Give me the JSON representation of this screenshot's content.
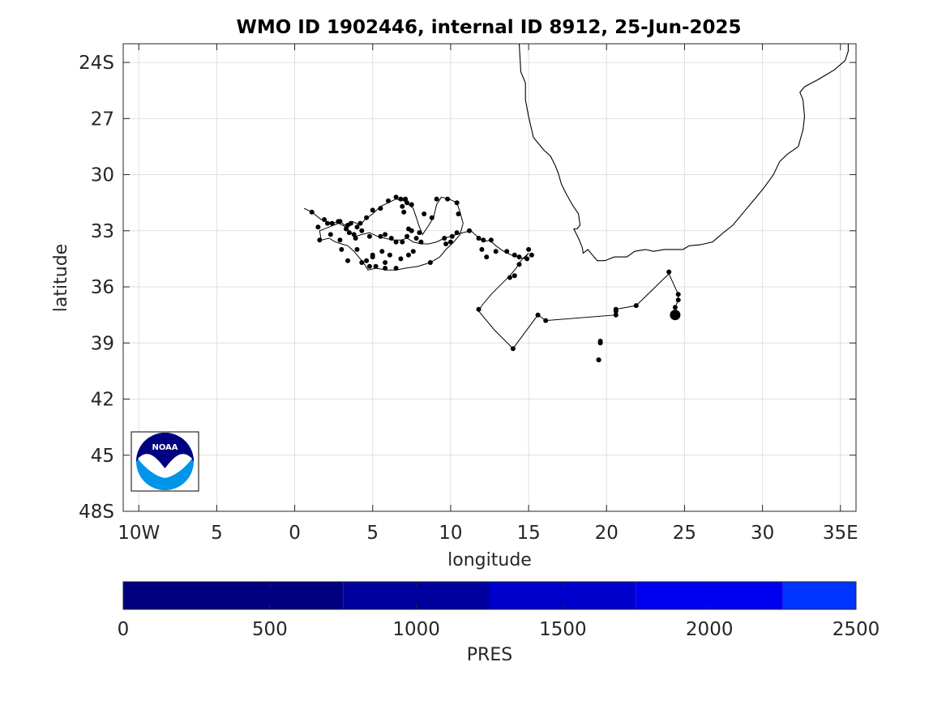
{
  "title": "WMO ID 1902446, internal ID 8912, 25-Jun-2025",
  "map": {
    "xlabel": "longitude",
    "ylabel": "latitude",
    "xlim": [
      -11,
      36
    ],
    "ylim": [
      -48,
      -23
    ],
    "xticks": [
      {
        "value": -10,
        "label": "10W"
      },
      {
        "value": -5,
        "label": "5"
      },
      {
        "value": 0,
        "label": "0"
      },
      {
        "value": 5,
        "label": "5"
      },
      {
        "value": 10,
        "label": "10"
      },
      {
        "value": 15,
        "label": "15"
      },
      {
        "value": 20,
        "label": "20"
      },
      {
        "value": 25,
        "label": "25"
      },
      {
        "value": 30,
        "label": "30"
      },
      {
        "value": 35,
        "label": "35E"
      }
    ],
    "yticks": [
      {
        "value": -24,
        "label": "24S"
      },
      {
        "value": -27,
        "label": "27"
      },
      {
        "value": -30,
        "label": "30"
      },
      {
        "value": -33,
        "label": "33"
      },
      {
        "value": -36,
        "label": "36"
      },
      {
        "value": -39,
        "label": "39"
      },
      {
        "value": -42,
        "label": "42"
      },
      {
        "value": -45,
        "label": "45"
      },
      {
        "value": -48,
        "label": "48S"
      }
    ],
    "grid": true,
    "coastline": [
      [
        14.4,
        -23.0
      ],
      [
        14.5,
        -24.5
      ],
      [
        14.8,
        -25.1
      ],
      [
        14.8,
        -26.0
      ],
      [
        15.0,
        -26.9
      ],
      [
        15.2,
        -27.6
      ],
      [
        15.3,
        -28.0
      ],
      [
        15.7,
        -28.4
      ],
      [
        16.0,
        -28.7
      ],
      [
        16.4,
        -29.0
      ],
      [
        16.7,
        -29.5
      ],
      [
        16.9,
        -29.9
      ],
      [
        17.1,
        -30.5
      ],
      [
        17.4,
        -31.0
      ],
      [
        17.8,
        -31.6
      ],
      [
        18.2,
        -32.1
      ],
      [
        18.3,
        -32.7
      ],
      [
        18.1,
        -32.9
      ],
      [
        17.9,
        -32.9
      ],
      [
        18.2,
        -33.4
      ],
      [
        18.45,
        -33.9
      ],
      [
        18.5,
        -34.2
      ],
      [
        18.8,
        -34.0
      ],
      [
        19.1,
        -34.3
      ],
      [
        19.4,
        -34.6
      ],
      [
        19.9,
        -34.6
      ],
      [
        20.5,
        -34.4
      ],
      [
        21.3,
        -34.4
      ],
      [
        21.8,
        -34.1
      ],
      [
        22.5,
        -34.0
      ],
      [
        23.0,
        -34.1
      ],
      [
        23.7,
        -34.0
      ],
      [
        24.5,
        -34.0
      ],
      [
        24.9,
        -34.0
      ],
      [
        25.3,
        -33.8
      ],
      [
        26.0,
        -33.75
      ],
      [
        26.8,
        -33.6
      ],
      [
        27.5,
        -33.1
      ],
      [
        28.1,
        -32.7
      ],
      [
        28.8,
        -32.0
      ],
      [
        29.5,
        -31.3
      ],
      [
        30.1,
        -30.7
      ],
      [
        30.7,
        -30.0
      ],
      [
        31.1,
        -29.3
      ],
      [
        31.6,
        -28.9
      ],
      [
        32.3,
        -28.5
      ],
      [
        32.6,
        -27.6
      ],
      [
        32.7,
        -26.9
      ],
      [
        32.6,
        -26.0
      ],
      [
        32.4,
        -25.6
      ],
      [
        32.7,
        -25.3
      ],
      [
        33.6,
        -24.9
      ],
      [
        34.6,
        -24.4
      ],
      [
        35.3,
        -23.9
      ],
      [
        35.5,
        -23.4
      ],
      [
        35.5,
        -23.0
      ]
    ],
    "track_path": [
      [
        0.6,
        -31.8
      ],
      [
        1.1,
        -32.0
      ],
      [
        1.7,
        -32.4
      ],
      [
        2.4,
        -32.6
      ],
      [
        2.9,
        -32.5
      ],
      [
        3.2,
        -32.7
      ],
      [
        3.7,
        -32.5
      ],
      [
        4.2,
        -32.7
      ],
      [
        4.5,
        -32.4
      ],
      [
        5.0,
        -32.1
      ],
      [
        5.5,
        -31.7
      ],
      [
        6.0,
        -31.5
      ],
      [
        6.5,
        -31.3
      ],
      [
        7.0,
        -31.4
      ],
      [
        7.3,
        -31.6
      ],
      [
        7.6,
        -31.8
      ],
      [
        7.8,
        -32.3
      ],
      [
        8.0,
        -32.8
      ],
      [
        8.2,
        -33.2
      ],
      [
        8.6,
        -32.7
      ],
      [
        8.9,
        -32.3
      ],
      [
        9.1,
        -31.6
      ],
      [
        9.4,
        -31.2
      ],
      [
        9.9,
        -31.3
      ],
      [
        10.4,
        -31.5
      ],
      [
        10.6,
        -32.0
      ],
      [
        10.8,
        -32.6
      ],
      [
        10.6,
        -33.2
      ],
      [
        10.2,
        -33.6
      ],
      [
        9.7,
        -34.0
      ],
      [
        9.3,
        -34.4
      ],
      [
        8.7,
        -34.7
      ],
      [
        7.9,
        -34.9
      ],
      [
        7.1,
        -35.0
      ],
      [
        6.5,
        -35.1
      ],
      [
        5.9,
        -35.1
      ],
      [
        5.2,
        -35.0
      ],
      [
        4.7,
        -35.1
      ],
      [
        4.4,
        -34.7
      ],
      [
        4.1,
        -34.4
      ],
      [
        3.8,
        -34.1
      ],
      [
        3.4,
        -33.8
      ],
      [
        3.0,
        -33.7
      ],
      [
        2.6,
        -33.6
      ],
      [
        2.2,
        -33.4
      ],
      [
        1.7,
        -33.5
      ],
      [
        1.6,
        -33.0
      ],
      [
        2.2,
        -32.8
      ],
      [
        2.8,
        -32.6
      ],
      [
        3.3,
        -32.8
      ],
      [
        3.6,
        -33.1
      ],
      [
        3.9,
        -33.3
      ],
      [
        4.3,
        -33.2
      ],
      [
        4.8,
        -33.1
      ],
      [
        5.3,
        -33.3
      ],
      [
        5.8,
        -33.4
      ],
      [
        6.3,
        -33.5
      ],
      [
        6.8,
        -33.5
      ],
      [
        7.2,
        -33.4
      ],
      [
        7.6,
        -33.6
      ],
      [
        8.1,
        -33.7
      ],
      [
        8.6,
        -33.7
      ],
      [
        9.1,
        -33.6
      ],
      [
        9.6,
        -33.4
      ],
      [
        10.0,
        -33.3
      ],
      [
        10.4,
        -33.2
      ],
      [
        10.8,
        -33.1
      ],
      [
        11.3,
        -33.0
      ],
      [
        11.7,
        -33.3
      ],
      [
        12.1,
        -33.6
      ],
      [
        12.5,
        -33.5
      ],
      [
        12.9,
        -33.8
      ],
      [
        13.4,
        -34.1
      ],
      [
        13.9,
        -34.3
      ],
      [
        14.3,
        -34.4
      ],
      [
        14.7,
        -34.5
      ],
      [
        15.0,
        -34.2
      ],
      [
        14.6,
        -34.5
      ],
      [
        14.2,
        -35.0
      ],
      [
        13.8,
        -35.4
      ],
      [
        13.2,
        -35.9
      ],
      [
        12.6,
        -36.4
      ],
      [
        12.0,
        -37.0
      ],
      [
        11.8,
        -37.3
      ],
      [
        12.8,
        -38.3
      ],
      [
        14.0,
        -39.3
      ],
      [
        14.8,
        -38.4
      ],
      [
        15.6,
        -37.5
      ],
      [
        16.1,
        -37.8
      ],
      [
        20.6,
        -37.5
      ],
      [
        20.6,
        -37.2
      ],
      [
        21.9,
        -37.0
      ],
      [
        24.0,
        -35.3
      ],
      [
        24.6,
        -36.4
      ],
      [
        24.6,
        -36.7
      ],
      [
        24.4,
        -37.1
      ],
      [
        24.4,
        -37.5
      ],
      [
        24.4,
        -37.5
      ]
    ],
    "track_points": [
      [
        1.1,
        -32.0
      ],
      [
        1.9,
        -32.4
      ],
      [
        2.4,
        -32.6
      ],
      [
        2.8,
        -32.5
      ],
      [
        3.4,
        -32.7
      ],
      [
        3.6,
        -32.6
      ],
      [
        4.0,
        -32.8
      ],
      [
        4.2,
        -32.6
      ],
      [
        4.6,
        -32.3
      ],
      [
        5.0,
        -31.9
      ],
      [
        5.5,
        -31.8
      ],
      [
        6.0,
        -31.4
      ],
      [
        6.5,
        -31.2
      ],
      [
        6.8,
        -31.3
      ],
      [
        6.9,
        -31.7
      ],
      [
        7.2,
        -31.5
      ],
      [
        7.5,
        -31.6
      ],
      [
        8.3,
        -32.1
      ],
      [
        8.0,
        -33.1
      ],
      [
        8.8,
        -32.3
      ],
      [
        9.1,
        -31.3
      ],
      [
        9.8,
        -31.3
      ],
      [
        10.4,
        -31.5
      ],
      [
        10.5,
        -32.1
      ],
      [
        10.4,
        -33.1
      ],
      [
        10.0,
        -33.6
      ],
      [
        9.7,
        -33.7
      ],
      [
        8.7,
        -34.7
      ],
      [
        6.5,
        -35.0
      ],
      [
        5.8,
        -35.0
      ],
      [
        5.2,
        -34.9
      ],
      [
        4.8,
        -34.9
      ],
      [
        4.6,
        -34.6
      ],
      [
        4.3,
        -34.7
      ],
      [
        4.0,
        -34.0
      ],
      [
        3.4,
        -34.6
      ],
      [
        3.0,
        -34.0
      ],
      [
        2.9,
        -33.5
      ],
      [
        2.3,
        -33.2
      ],
      [
        1.6,
        -33.5
      ],
      [
        1.5,
        -32.8
      ],
      [
        2.1,
        -32.6
      ],
      [
        2.9,
        -32.5
      ],
      [
        3.3,
        -32.9
      ],
      [
        3.5,
        -33.1
      ],
      [
        3.8,
        -33.2
      ],
      [
        3.9,
        -33.4
      ],
      [
        4.3,
        -33.0
      ],
      [
        4.8,
        -33.3
      ],
      [
        5.0,
        -34.4
      ],
      [
        5.5,
        -33.3
      ],
      [
        5.8,
        -33.2
      ],
      [
        6.2,
        -33.4
      ],
      [
        6.5,
        -33.6
      ],
      [
        6.9,
        -33.6
      ],
      [
        7.2,
        -33.3
      ],
      [
        7.3,
        -32.9
      ],
      [
        7.5,
        -33.0
      ],
      [
        7.8,
        -33.4
      ],
      [
        8.1,
        -33.6
      ],
      [
        7.6,
        -34.1
      ],
      [
        7.3,
        -34.3
      ],
      [
        6.8,
        -34.5
      ],
      [
        6.1,
        -34.3
      ],
      [
        5.6,
        -34.1
      ],
      [
        5.8,
        -34.7
      ],
      [
        5.0,
        -34.3
      ],
      [
        9.6,
        -33.4
      ],
      [
        10.1,
        -33.3
      ],
      [
        11.2,
        -33.0
      ],
      [
        11.8,
        -33.4
      ],
      [
        12.1,
        -33.5
      ],
      [
        12.6,
        -33.5
      ],
      [
        12.0,
        -34.0
      ],
      [
        12.3,
        -34.4
      ],
      [
        12.9,
        -34.1
      ],
      [
        13.6,
        -34.1
      ],
      [
        14.1,
        -34.3
      ],
      [
        14.4,
        -34.4
      ],
      [
        14.9,
        -34.5
      ],
      [
        15.2,
        -34.3
      ],
      [
        15.0,
        -34.0
      ],
      [
        14.4,
        -34.8
      ],
      [
        14.1,
        -35.4
      ],
      [
        13.8,
        -35.5
      ],
      [
        11.8,
        -37.2
      ],
      [
        14.0,
        -39.3
      ],
      [
        15.6,
        -37.5
      ],
      [
        16.1,
        -37.8
      ],
      [
        19.5,
        -39.9
      ],
      [
        19.6,
        -38.9
      ],
      [
        20.6,
        -37.5
      ],
      [
        20.6,
        -37.3
      ],
      [
        21.9,
        -37.0
      ],
      [
        24.0,
        -35.2
      ],
      [
        24.6,
        -36.4
      ],
      [
        24.6,
        -36.7
      ],
      [
        24.4,
        -37.1
      ],
      [
        20.6,
        -37.2
      ],
      [
        19.6,
        -39.0
      ],
      [
        19.5,
        -39.9
      ],
      [
        7.0,
        -32.0
      ],
      [
        7.1,
        -31.3
      ]
    ],
    "latest_point": [
      24.4,
      -37.5
    ]
  },
  "logo": {
    "text": "NOAA",
    "colors": {
      "top": "#000080",
      "bottom": "#0095e8",
      "gull": "#ffffff"
    }
  },
  "colorbar": {
    "label": "PRES",
    "min": 0,
    "max": 2500,
    "ticks": [
      0,
      500,
      1000,
      1500,
      2000,
      2500
    ],
    "segments": [
      {
        "from": 0,
        "to": 750,
        "color": "#000080"
      },
      {
        "from": 750,
        "to": 1250,
        "color": "#00009f"
      },
      {
        "from": 1250,
        "to": 1750,
        "color": "#0000cd"
      },
      {
        "from": 1750,
        "to": 2250,
        "color": "#0000f0"
      },
      {
        "from": 2250,
        "to": 2500,
        "color": "#0034ff"
      }
    ]
  },
  "colors": {
    "grid": "#e0e0e0",
    "axes": "#262626",
    "track": "#000000",
    "coast": "#000000"
  }
}
